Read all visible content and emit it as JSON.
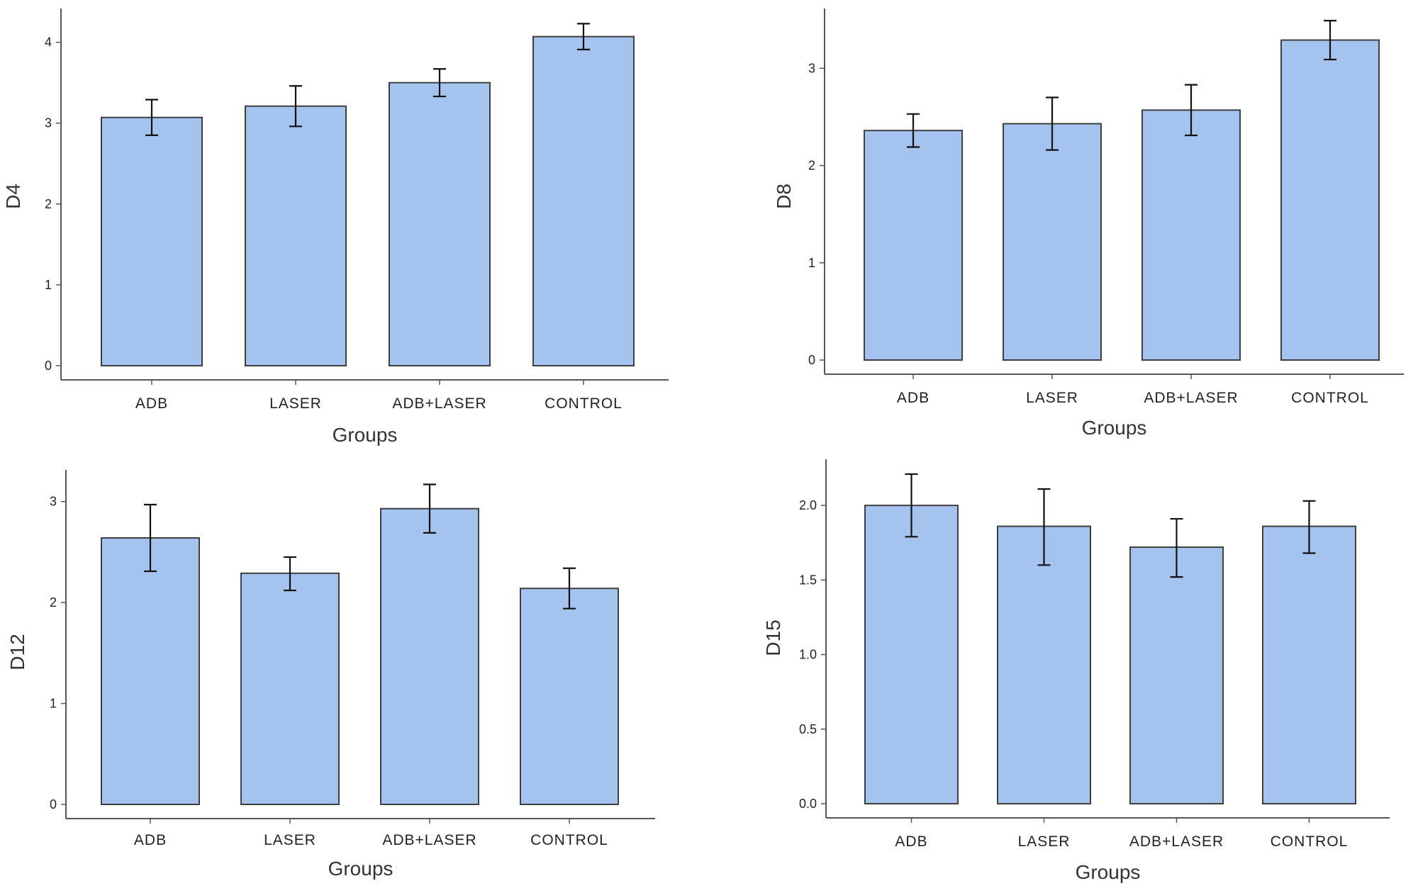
{
  "colors": {
    "bar_fill": "#a5c3ef",
    "bar_stroke": "#3f3f3f",
    "axis": "#555555",
    "error_bar": "#111111"
  },
  "chart_data": [
    {
      "type": "bar",
      "title": "",
      "xlabel": "Groups",
      "ylabel": "D4",
      "categories": [
        "ADB",
        "LASER",
        "ADB+LASER",
        "CONTROL"
      ],
      "values": [
        3.07,
        3.21,
        3.5,
        4.07
      ],
      "error_low": [
        2.85,
        2.96,
        3.33,
        3.91
      ],
      "error_high": [
        3.29,
        3.46,
        3.67,
        4.23
      ],
      "ylim": [
        0,
        4.4
      ],
      "yticks": [
        0,
        1,
        2,
        3,
        4
      ],
      "ytick_labels": [
        "0",
        "1",
        "2",
        "3",
        "4"
      ],
      "grid": false,
      "legend": "none"
    },
    {
      "type": "bar",
      "title": "",
      "xlabel": "Groups",
      "ylabel": "D8",
      "categories": [
        "ADB",
        "LASER",
        "ADB+LASER",
        "CONTROL"
      ],
      "values": [
        2.36,
        2.43,
        2.57,
        3.29
      ],
      "error_low": [
        2.19,
        2.16,
        2.31,
        3.09
      ],
      "error_high": [
        2.53,
        2.7,
        2.83,
        3.49
      ],
      "ylim": [
        0,
        3.6
      ],
      "yticks": [
        0,
        1,
        2,
        3
      ],
      "ytick_labels": [
        "0",
        "1",
        "2",
        "3"
      ],
      "grid": false,
      "legend": "none"
    },
    {
      "type": "bar",
      "title": "",
      "xlabel": "Groups",
      "ylabel": "D12",
      "categories": [
        "ADB",
        "LASER",
        "ADB+LASER",
        "CONTROL"
      ],
      "values": [
        2.64,
        2.29,
        2.93,
        2.14
      ],
      "error_low": [
        2.31,
        2.12,
        2.69,
        1.94
      ],
      "error_high": [
        2.97,
        2.45,
        3.17,
        2.34
      ],
      "ylim": [
        0,
        3.3
      ],
      "yticks": [
        0,
        1,
        2,
        3
      ],
      "ytick_labels": [
        "0",
        "1",
        "2",
        "3"
      ],
      "grid": false,
      "legend": "none"
    },
    {
      "type": "bar",
      "title": "",
      "xlabel": "Groups",
      "ylabel": "D15",
      "categories": [
        "ADB",
        "LASER",
        "ADB+LASER",
        "CONTROL"
      ],
      "values": [
        2.0,
        1.86,
        1.72,
        1.86
      ],
      "error_low": [
        1.79,
        1.6,
        1.52,
        1.68
      ],
      "error_high": [
        2.21,
        2.11,
        1.91,
        2.03
      ],
      "ylim": [
        0,
        2.3
      ],
      "yticks": [
        0,
        0.5,
        1.0,
        1.5,
        2.0
      ],
      "ytick_labels": [
        "0.0",
        "0.5",
        "1.0",
        "1.5",
        "2.0"
      ],
      "grid": false,
      "legend": "none"
    }
  ]
}
